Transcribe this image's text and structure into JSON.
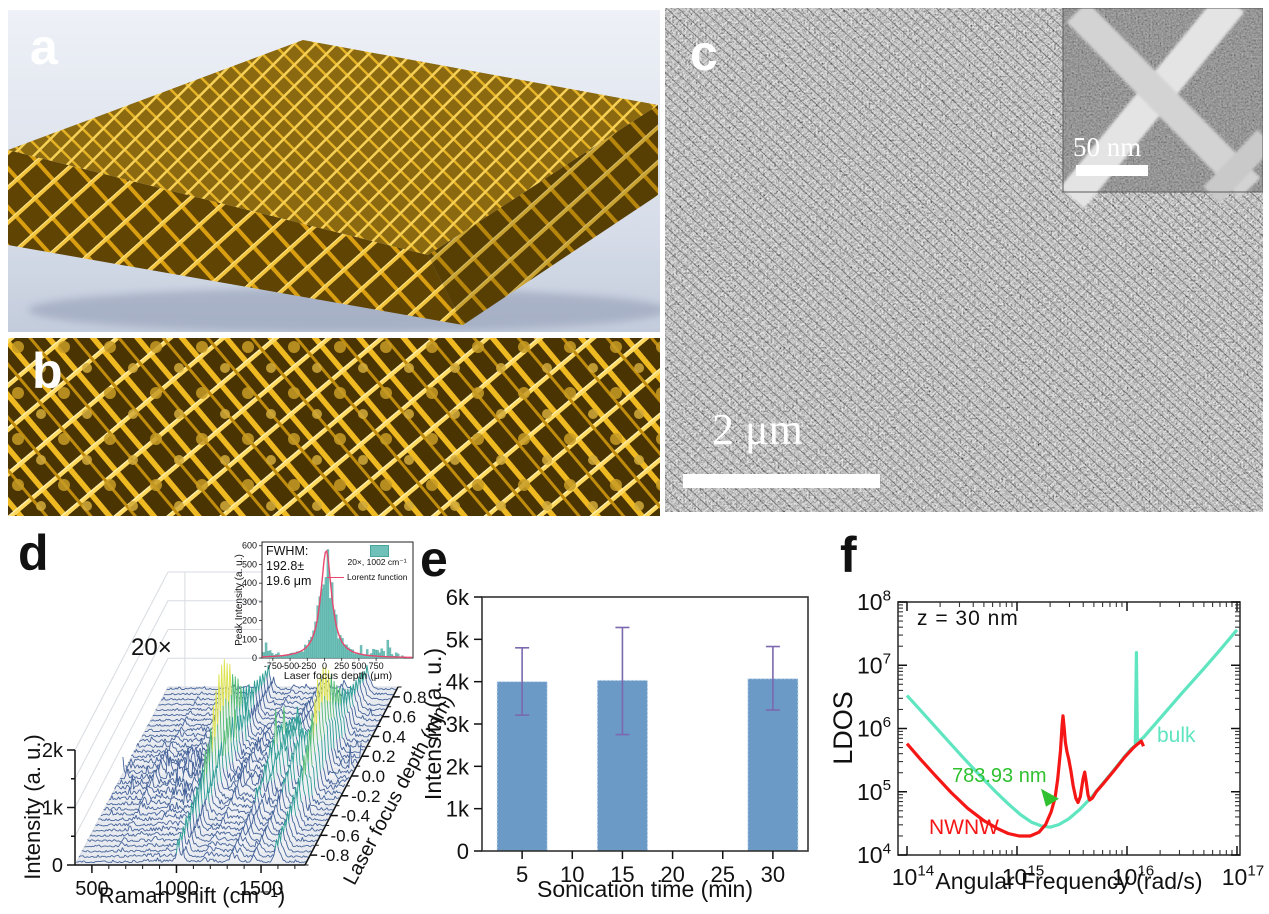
{
  "figure_labels": {
    "a": "a",
    "b": "b",
    "c": "c",
    "d": "d",
    "e": "e",
    "f": "f"
  },
  "panel_c": {
    "scale_bar_label": "2 μm",
    "inset_scale_bar_label": "50 nm"
  },
  "panel_d": {
    "annotation_magnification": "20×",
    "inset_fwhm_line1": "FWHM:",
    "inset_fwhm_line2": "192.8±",
    "inset_fwhm_line3": "19.6 μm",
    "inset_legend_hist": "20×, 1002 cm⁻¹",
    "inset_legend_line": "Lorentz function"
  },
  "panel_f": {
    "annotation_z": "z = 30 nm",
    "annotation_wavelength": "783.93 nm",
    "label_nwnw": "NWNW",
    "label_bulk": "bulk"
  },
  "colors": {
    "bar_fill": "#6b9ac7",
    "error_bar": "#7b68ae",
    "bulk_curve": "#5fe5c0",
    "nwnw_curve": "#f51616",
    "wavelength_green": "#2fc12f",
    "hist_bar": "#6fc0b8",
    "lorentz_line": "#e8486e",
    "gold": "#e3ae1d"
  },
  "chart_data": [
    {
      "id": "raman_waterfall",
      "type": "line-3d-waterfall",
      "panel": "d",
      "xlabel": "Raman shift (cm⁻¹)",
      "ylabel": "Intensity (a. u.)",
      "zlabel": "Laser focus depth (mm)",
      "xrange": [
        400,
        1760
      ],
      "xticks": [
        500,
        1000,
        1500
      ],
      "yrange": [
        0,
        2000
      ],
      "yticks": [
        {
          "v": 0,
          "t": "0"
        },
        {
          "v": 1000,
          "t": "1k"
        },
        {
          "v": 2000,
          "t": "2k"
        }
      ],
      "zrange": [
        -0.9,
        0.9
      ],
      "zticks": [
        -0.8,
        -0.6,
        -0.4,
        -0.2,
        0.0,
        0.2,
        0.4,
        0.6,
        0.8
      ],
      "n_rows": 34,
      "raman_peaks": [
        [
          620,
          8,
          0.1
        ],
        [
          795,
          10,
          0.06
        ],
        [
          1002,
          7,
          1.0
        ],
        [
          1032,
          7,
          0.42
        ],
        [
          1155,
          9,
          0.16
        ],
        [
          1205,
          30,
          0.08
        ],
        [
          1320,
          11,
          0.4
        ],
        [
          1352,
          9,
          0.28
        ],
        [
          1450,
          10,
          0.36
        ],
        [
          1585,
          9,
          0.9
        ],
        [
          1605,
          8,
          0.3
        ]
      ],
      "depth_envelope": {
        "baseline": 250,
        "amplitude": 1750,
        "gamma_mm": 0.3,
        "center_mm": 0
      }
    },
    {
      "id": "focus_histogram",
      "type": "histogram",
      "panel": "d-inset",
      "xlabel": "Laser focus depth (μm)",
      "ylabel": "Peak Intensity (a. u.)",
      "xrange": [
        -908,
        1286
      ],
      "xticks": [
        -750,
        -500,
        -250,
        0,
        250,
        500,
        750
      ],
      "yrange": [
        0,
        620
      ],
      "yticks": [
        0,
        100,
        200,
        300,
        400,
        500,
        600
      ],
      "fwhm_value": "192.8± 19.6 μm",
      "legend": [
        {
          "label": "20×, 1002 cm⁻¹",
          "type": "bar",
          "color": "#6fc0b8"
        },
        {
          "label": "Lorentz function",
          "type": "line",
          "color": "#e8486e"
        }
      ],
      "lorentz": {
        "center": 25,
        "gamma": 96.4,
        "amplitude": 575
      },
      "bar_step": 30
    },
    {
      "id": "sonication_bars",
      "type": "bar",
      "panel": "e",
      "xlabel": "Sonication time (min)",
      "ylabel": "Intensity (a. u.)",
      "categories": [
        5,
        15,
        30
      ],
      "values": [
        4000,
        4030,
        4070
      ],
      "errors_up": [
        800,
        1250,
        760
      ],
      "errors_down": [
        790,
        1280,
        740
      ],
      "bar_width_min": 5,
      "xticks": [
        5,
        10,
        15,
        20,
        25,
        30
      ],
      "xlim": [
        1,
        33.5
      ],
      "ylim": [
        0,
        6000
      ],
      "yticks": [
        {
          "v": 0,
          "t": "0"
        },
        {
          "v": 1000,
          "t": "1k"
        },
        {
          "v": 2000,
          "t": "2k"
        },
        {
          "v": 3000,
          "t": "3k"
        },
        {
          "v": 4000,
          "t": "4k"
        },
        {
          "v": 5000,
          "t": "5k"
        },
        {
          "v": 6000,
          "t": "6k"
        }
      ]
    },
    {
      "id": "ldos",
      "type": "line",
      "panel": "f",
      "xlabel": "Angular Frequency (rad/s)",
      "ylabel": "LDOS",
      "xscale": "log",
      "yscale": "log",
      "xtick_exponents": [
        14,
        15,
        16,
        17
      ],
      "ytick_exponents": [
        4,
        5,
        6,
        7,
        8
      ],
      "annotation": "z = 30 nm",
      "marker": {
        "label": "783.93 nm",
        "color": "#2fc12f",
        "log10_x": 15.3,
        "log10_y": 4.92
      },
      "series": [
        {
          "name": "bulk",
          "color": "#5fe5c0",
          "points_log10": [
            [
              14.0,
              6.52
            ],
            [
              14.1,
              6.33
            ],
            [
              14.22,
              6.1
            ],
            [
              14.36,
              5.83
            ],
            [
              14.5,
              5.56
            ],
            [
              14.65,
              5.28
            ],
            [
              14.8,
              5.01
            ],
            [
              14.92,
              4.81
            ],
            [
              15.03,
              4.64
            ],
            [
              15.13,
              4.52
            ],
            [
              15.22,
              4.46
            ],
            [
              15.3,
              4.44
            ],
            [
              15.38,
              4.48
            ],
            [
              15.47,
              4.57
            ],
            [
              15.57,
              4.72
            ],
            [
              15.67,
              4.9
            ],
            [
              15.77,
              5.11
            ],
            [
              15.87,
              5.32
            ],
            [
              15.97,
              5.54
            ],
            [
              16.04,
              5.68
            ],
            [
              16.075,
              5.73
            ],
            [
              16.085,
              7.2
            ],
            [
              16.095,
              5.78
            ],
            [
              16.15,
              5.86
            ],
            [
              16.3,
              6.16
            ],
            [
              16.5,
              6.56
            ],
            [
              16.7,
              6.95
            ],
            [
              16.85,
              7.25
            ],
            [
              17.0,
              7.56
            ]
          ]
        },
        {
          "name": "NWNW",
          "color": "#f51616",
          "points_log10": [
            [
              14.0,
              5.76
            ],
            [
              14.12,
              5.52
            ],
            [
              14.25,
              5.27
            ],
            [
              14.4,
              4.99
            ],
            [
              14.55,
              4.74
            ],
            [
              14.7,
              4.54
            ],
            [
              14.82,
              4.42
            ],
            [
              14.92,
              4.34
            ],
            [
              15.02,
              4.3
            ],
            [
              15.12,
              4.3
            ],
            [
              15.2,
              4.36
            ],
            [
              15.26,
              4.48
            ],
            [
              15.31,
              4.68
            ],
            [
              15.345,
              4.9
            ],
            [
              15.37,
              5.2
            ],
            [
              15.395,
              5.65
            ],
            [
              15.41,
              6.05
            ],
            [
              15.418,
              6.2
            ],
            [
              15.428,
              6.02
            ],
            [
              15.44,
              5.78
            ],
            [
              15.455,
              5.63
            ],
            [
              15.47,
              5.52
            ],
            [
              15.49,
              5.33
            ],
            [
              15.51,
              5.1
            ],
            [
              15.535,
              4.9
            ],
            [
              15.555,
              4.83
            ],
            [
              15.575,
              4.92
            ],
            [
              15.6,
              5.2
            ],
            [
              15.615,
              5.31
            ],
            [
              15.63,
              5.15
            ],
            [
              15.645,
              4.95
            ],
            [
              15.66,
              4.87
            ],
            [
              15.685,
              4.9
            ],
            [
              15.72,
              5.0
            ],
            [
              15.78,
              5.12
            ],
            [
              15.88,
              5.33
            ],
            [
              15.98,
              5.55
            ],
            [
              16.06,
              5.7
            ],
            [
              16.1,
              5.76
            ],
            [
              16.13,
              5.8
            ],
            [
              16.15,
              5.72
            ]
          ]
        }
      ]
    }
  ]
}
